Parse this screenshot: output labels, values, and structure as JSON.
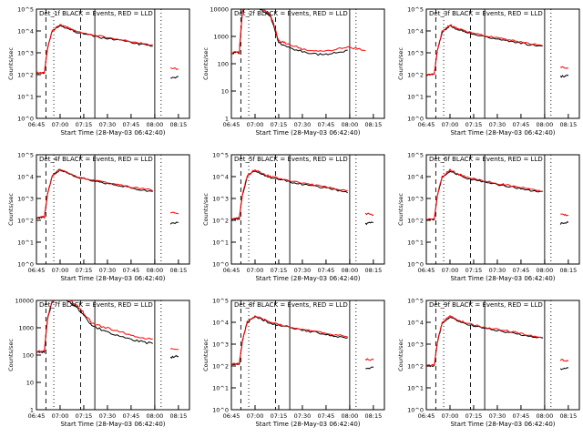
{
  "colors": {
    "events": "#000000",
    "lld": "#ff0000",
    "axis": "#000000",
    "background": "#ffffff"
  },
  "xticks": [
    "06:45",
    "07:00",
    "07:15",
    "07:30",
    "07:45",
    "08:00",
    "08:15"
  ],
  "xlabel": "Start Time (28-May-03 06:42:40)",
  "ylabel": "Counts/sec",
  "chart_data": [
    {
      "type": "line",
      "title": "Det_1f  BLACK = Events, RED = LLD",
      "x": [
        "06:45",
        "06:50",
        "06:52",
        "06:55",
        "07:00",
        "07:05",
        "07:10",
        "07:20",
        "07:30",
        "07:40",
        "07:50",
        "08:00",
        "08:05",
        "08:10",
        "08:15"
      ],
      "series": [
        {
          "name": "Events",
          "values": [
            120,
            120,
            1500,
            10000,
            18000,
            13000,
            9000,
            6000,
            4500,
            3500,
            2500,
            2000,
            null,
            70,
            80
          ]
        },
        {
          "name": "LLD",
          "values": [
            120,
            120,
            1600,
            10000,
            20000,
            14000,
            10000,
            6500,
            5000,
            3800,
            2800,
            2200,
            null,
            200,
            180
          ]
        }
      ],
      "ylim": [
        1,
        100000
      ],
      "yscale": "log",
      "yticks": [
        "10^0",
        "10^1",
        "10^2",
        "10^3",
        "10^4",
        "10^5"
      ]
    },
    {
      "type": "line",
      "title": "Det_2f  BLACK = Events, RED = LLD",
      "x": [
        "06:45",
        "06:50",
        "06:52",
        "06:55",
        "07:00",
        "07:05",
        "07:10",
        "07:15",
        "07:20",
        "07:30",
        "07:40",
        "07:50",
        "08:00",
        "08:10"
      ],
      "series": [
        {
          "name": "Events",
          "values": [
            250,
            250,
            8000,
            15000,
            12000,
            9000,
            5000,
            600,
            400,
            280,
            220,
            240,
            300,
            null
          ]
        },
        {
          "name": "LLD",
          "values": [
            250,
            260,
            9000,
            16000,
            14000,
            10000,
            6000,
            700,
            550,
            350,
            280,
            330,
            420,
            300
          ]
        }
      ],
      "ylim": [
        1,
        10000
      ],
      "yscale": "log",
      "yticks": [
        "1",
        "10",
        "100",
        "1000",
        "10000"
      ]
    },
    {
      "type": "line",
      "title": "Det_3f  BLACK = Events, RED = LLD",
      "x": [
        "06:45",
        "06:50",
        "06:52",
        "06:55",
        "07:00",
        "07:05",
        "07:10",
        "07:20",
        "07:30",
        "07:40",
        "07:50",
        "08:00",
        "08:05",
        "08:10",
        "08:15"
      ],
      "series": [
        {
          "name": "Events",
          "values": [
            100,
            100,
            1200,
            9000,
            17000,
            12000,
            8500,
            6000,
            4300,
            3200,
            2400,
            1900,
            null,
            80,
            90
          ]
        },
        {
          "name": "LLD",
          "values": [
            100,
            110,
            1300,
            9500,
            19000,
            13000,
            9500,
            6500,
            4800,
            3600,
            2700,
            2100,
            null,
            220,
            200
          ]
        }
      ],
      "ylim": [
        1,
        100000
      ],
      "yscale": "log",
      "yticks": [
        "10^0",
        "10^1",
        "10^2",
        "10^3",
        "10^4",
        "10^5"
      ]
    },
    {
      "type": "line",
      "title": "Det_4f  BLACK = Events, RED = LLD",
      "x": [
        "06:45",
        "06:50",
        "06:52",
        "06:55",
        "07:00",
        "07:05",
        "07:10",
        "07:20",
        "07:30",
        "07:40",
        "07:50",
        "08:00",
        "08:05",
        "08:10",
        "08:15"
      ],
      "series": [
        {
          "name": "Events",
          "values": [
            130,
            130,
            1500,
            11000,
            20000,
            14000,
            9500,
            6500,
            4700,
            3600,
            2600,
            2000,
            null,
            70,
            80
          ]
        },
        {
          "name": "LLD",
          "values": [
            130,
            140,
            1600,
            11000,
            22000,
            15000,
            10000,
            7000,
            5200,
            4000,
            2900,
            2300,
            null,
            230,
            200
          ]
        }
      ],
      "ylim": [
        1,
        100000
      ],
      "yscale": "log",
      "yticks": [
        "10^0",
        "10^1",
        "10^2",
        "10^3",
        "10^4",
        "10^5"
      ]
    },
    {
      "type": "line",
      "title": "Det_5f  BLACK = Events, RED = LLD",
      "x": [
        "06:45",
        "06:50",
        "06:52",
        "06:55",
        "07:00",
        "07:05",
        "07:10",
        "07:20",
        "07:30",
        "07:40",
        "07:50",
        "08:00",
        "08:05",
        "08:10",
        "08:15"
      ],
      "series": [
        {
          "name": "Events",
          "values": [
            120,
            120,
            1400,
            10000,
            19000,
            13000,
            9000,
            6200,
            4500,
            3400,
            2500,
            1900,
            null,
            70,
            80
          ]
        },
        {
          "name": "LLD",
          "values": [
            120,
            130,
            1500,
            10500,
            21000,
            14000,
            9800,
            6800,
            5000,
            3800,
            2800,
            2200,
            null,
            200,
            180
          ]
        }
      ],
      "ylim": [
        1,
        100000
      ],
      "yscale": "log",
      "yticks": [
        "10^0",
        "10^1",
        "10^2",
        "10^3",
        "10^4",
        "10^5"
      ]
    },
    {
      "type": "line",
      "title": "Det_6f  BLACK = Events, RED = LLD",
      "x": [
        "06:45",
        "06:50",
        "06:52",
        "06:55",
        "07:00",
        "07:05",
        "07:10",
        "07:20",
        "07:30",
        "07:40",
        "07:50",
        "08:00",
        "08:05",
        "08:10",
        "08:15"
      ],
      "series": [
        {
          "name": "Events",
          "values": [
            110,
            110,
            1300,
            9500,
            18000,
            12500,
            8800,
            6000,
            4400,
            3300,
            2400,
            1900,
            null,
            70,
            80
          ]
        },
        {
          "name": "LLD",
          "values": [
            110,
            120,
            1400,
            10000,
            20000,
            13500,
            9500,
            6600,
            4900,
            3700,
            2700,
            2100,
            null,
            190,
            170
          ]
        }
      ],
      "ylim": [
        1,
        100000
      ],
      "yscale": "log",
      "yticks": [
        "10^0",
        "10^1",
        "10^2",
        "10^3",
        "10^4",
        "10^5"
      ]
    },
    {
      "type": "line",
      "title": "Det_7f  BLACK = Events, RED = LLD",
      "x": [
        "06:45",
        "06:50",
        "06:52",
        "06:55",
        "07:00",
        "07:05",
        "07:10",
        "07:15",
        "07:20",
        "07:30",
        "07:40",
        "07:50",
        "08:00",
        "08:05",
        "08:10",
        "08:15"
      ],
      "series": [
        {
          "name": "Events",
          "values": [
            130,
            130,
            2000,
            9000,
            13000,
            9500,
            6000,
            3000,
            1200,
            700,
            450,
            320,
            250,
            null,
            80,
            90
          ]
        },
        {
          "name": "LLD",
          "values": [
            130,
            140,
            2200,
            10000,
            15000,
            11000,
            7000,
            3500,
            1500,
            950,
            650,
            450,
            350,
            null,
            180,
            160
          ]
        }
      ],
      "ylim": [
        1,
        10000
      ],
      "yscale": "log",
      "yticks": [
        "1",
        "10",
        "100",
        "1000",
        "10000"
      ]
    },
    {
      "type": "line",
      "title": "Det_8f  BLACK = Events, RED = LLD",
      "x": [
        "06:45",
        "06:50",
        "06:52",
        "06:55",
        "07:00",
        "07:05",
        "07:10",
        "07:20",
        "07:30",
        "07:40",
        "07:50",
        "08:00",
        "08:05",
        "08:10",
        "08:15"
      ],
      "series": [
        {
          "name": "Events",
          "values": [
            120,
            120,
            1400,
            9800,
            18500,
            13000,
            9000,
            6100,
            4400,
            3300,
            2400,
            1900,
            null,
            75,
            85
          ]
        },
        {
          "name": "LLD",
          "values": [
            120,
            130,
            1500,
            10200,
            20500,
            14000,
            9700,
            6700,
            4900,
            3700,
            2700,
            2150,
            null,
            210,
            190
          ]
        }
      ],
      "ylim": [
        1,
        100000
      ],
      "yscale": "log",
      "yticks": [
        "10^0",
        "10^1",
        "10^2",
        "10^3",
        "10^4",
        "10^5"
      ]
    },
    {
      "type": "line",
      "title": "Det_9f  BLACK = Events, RED = LLD",
      "x": [
        "06:45",
        "06:50",
        "06:52",
        "06:55",
        "07:00",
        "07:05",
        "07:10",
        "07:20",
        "07:30",
        "07:40",
        "07:50",
        "08:00",
        "08:05",
        "08:10",
        "08:15"
      ],
      "series": [
        {
          "name": "Events",
          "values": [
            100,
            100,
            1200,
            9000,
            17000,
            12000,
            8500,
            5800,
            4200,
            3200,
            2300,
            1800,
            null,
            70,
            80
          ]
        },
        {
          "name": "LLD",
          "values": [
            100,
            110,
            1300,
            9500,
            19000,
            13000,
            9200,
            6300,
            4700,
            3600,
            2600,
            2000,
            null,
            190,
            170
          ]
        }
      ],
      "ylim": [
        1,
        100000
      ],
      "yscale": "log",
      "yticks": [
        "10^0",
        "10^1",
        "10^2",
        "10^3",
        "10^4",
        "10^5"
      ]
    }
  ]
}
